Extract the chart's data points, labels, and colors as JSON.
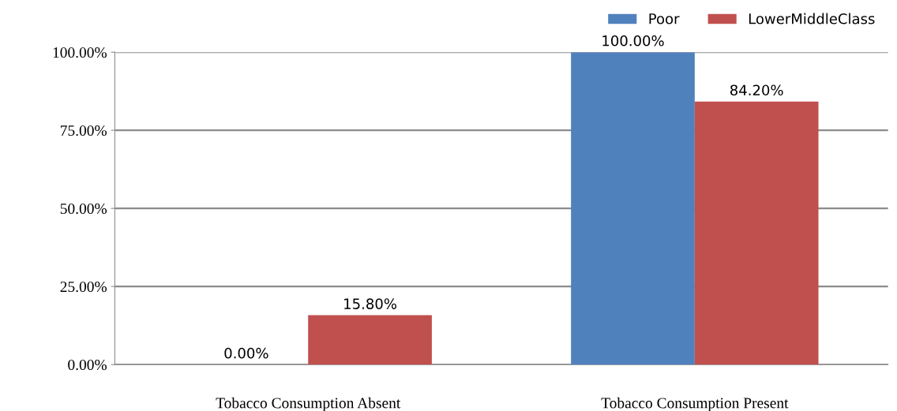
{
  "chart_data": {
    "type": "bar",
    "categories": [
      "Tobacco Consumption Absent",
      "Tobacco Consumption Present"
    ],
    "series": [
      {
        "name": "Poor",
        "color": "#4f81bd",
        "values": [
          0,
          100
        ]
      },
      {
        "name": "LowerMiddleClass",
        "color": "#c0504d",
        "values": [
          15.8,
          84.2
        ]
      }
    ],
    "value_labels": [
      [
        "0.00%",
        "100.00%"
      ],
      [
        "15.80%",
        "84.20%"
      ]
    ],
    "ylim": [
      0,
      100
    ],
    "yticks": [
      {
        "value": 0,
        "label": "0.00%"
      },
      {
        "value": 25,
        "label": "25.00%"
      },
      {
        "value": 50,
        "label": "50.00%"
      },
      {
        "value": 75,
        "label": "75.00%"
      },
      {
        "value": 100,
        "label": "100.00%"
      }
    ],
    "grid": "y",
    "legend": "top right"
  }
}
